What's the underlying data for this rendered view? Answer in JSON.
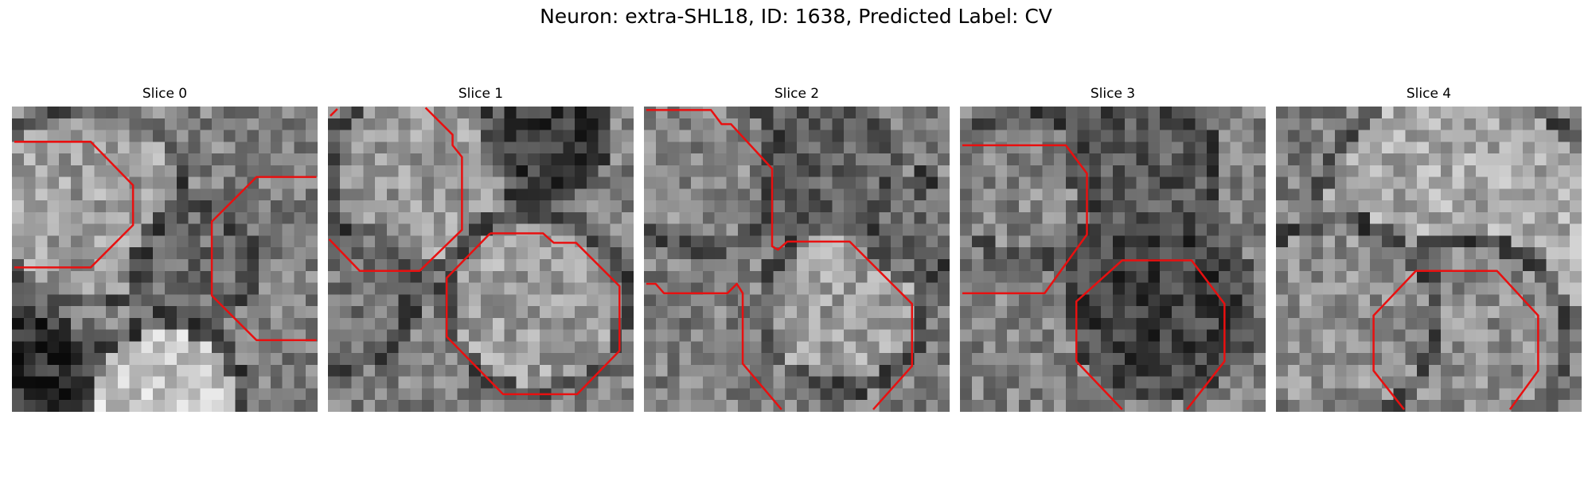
{
  "figure": {
    "title": "Neuron: extra-SHL18, ID: 1638, Predicted Label: CV"
  },
  "colors": {
    "contour": "#e81010"
  },
  "panels": [
    {
      "title": "Slice 0",
      "seed": 11,
      "circles": [
        [
          0.25,
          0.32,
          0.3,
          0.62
        ],
        [
          0.6,
          0.52,
          0.16,
          0.42
        ],
        [
          0.5,
          0.95,
          0.22,
          0.78
        ],
        [
          0.05,
          0.88,
          0.18,
          0.18
        ]
      ],
      "contours": [
        [
          [
            0.2,
            3
          ],
          [
            6.7,
            3
          ],
          [
            10.3,
            6.7
          ],
          [
            10.3,
            10.1
          ],
          [
            6.7,
            13.7
          ],
          [
            0.2,
            13.7
          ]
        ],
        [
          [
            25.9,
            6
          ],
          [
            20.8,
            6
          ],
          [
            17,
            9.8
          ],
          [
            17,
            16.1
          ],
          [
            20.8,
            19.9
          ],
          [
            25.9,
            19.9
          ]
        ]
      ]
    },
    {
      "title": "Slice 1",
      "seed": 23,
      "circles": [
        [
          0.3,
          0.22,
          0.28,
          0.6
        ],
        [
          0.68,
          0.64,
          0.27,
          0.62
        ],
        [
          0.72,
          0.1,
          0.16,
          0.22
        ],
        [
          0.05,
          0.62,
          0.2,
          0.45
        ]
      ],
      "contours": [
        [
          [
            8.3,
            0.1
          ],
          [
            10.6,
            2.4
          ],
          [
            10.6,
            3.3
          ],
          [
            11.4,
            4.3
          ],
          [
            11.4,
            10.5
          ],
          [
            7.8,
            14
          ],
          [
            2.7,
            14
          ],
          [
            0.1,
            11.3
          ]
        ],
        [
          [
            0.2,
            0.8
          ],
          [
            0.8,
            0.2
          ]
        ],
        [
          [
            13.8,
            10.8
          ],
          [
            18.3,
            10.8
          ],
          [
            19.2,
            11.6
          ],
          [
            21.1,
            11.6
          ],
          [
            24.8,
            15.3
          ],
          [
            24.8,
            20.8
          ],
          [
            21.2,
            24.5
          ],
          [
            14.9,
            24.5
          ],
          [
            10.1,
            19.6
          ],
          [
            10.1,
            14.6
          ],
          [
            13.8,
            10.8
          ]
        ]
      ]
    },
    {
      "title": "Slice 2",
      "seed": 37,
      "circles": [
        [
          0.65,
          0.66,
          0.24,
          0.62
        ],
        [
          0.18,
          0.2,
          0.24,
          0.52
        ],
        [
          0.62,
          0.18,
          0.18,
          0.38
        ],
        [
          0.9,
          0.4,
          0.14,
          0.4
        ]
      ],
      "contours": [
        [
          [
            0.2,
            0.3
          ],
          [
            5.7,
            0.3
          ],
          [
            6.6,
            1.5
          ],
          [
            7.4,
            1.5
          ],
          [
            10.9,
            5.3
          ],
          [
            10.9,
            11.9
          ],
          [
            11.4,
            12.2
          ],
          [
            12.2,
            11.5
          ],
          [
            17.5,
            11.5
          ],
          [
            22.8,
            16.8
          ],
          [
            22.8,
            22.1
          ],
          [
            19.5,
            25.8
          ]
        ],
        [
          [
            0.2,
            15.1
          ],
          [
            1,
            15.1
          ],
          [
            1.7,
            15.9
          ],
          [
            7.1,
            15.9
          ],
          [
            7.9,
            15.1
          ],
          [
            8.4,
            15.9
          ],
          [
            8.4,
            21.9
          ],
          [
            11.7,
            25.8
          ]
        ]
      ]
    },
    {
      "title": "Slice 3",
      "seed": 53,
      "circles": [
        [
          0.66,
          0.64,
          0.2,
          0.66
        ],
        [
          0.22,
          0.26,
          0.22,
          0.52
        ],
        [
          0.66,
          0.64,
          0.27,
          0.25
        ],
        [
          0.6,
          0.2,
          0.2,
          0.34
        ]
      ],
      "contours": [
        [
          [
            0.2,
            3.3
          ],
          [
            9,
            3.3
          ],
          [
            10.8,
            5.7
          ],
          [
            10.8,
            10.9
          ],
          [
            7.2,
            15.9
          ],
          [
            0.2,
            15.9
          ]
        ],
        [
          [
            13.8,
            25.8
          ],
          [
            9.9,
            21.7
          ],
          [
            9.9,
            16.6
          ],
          [
            13.8,
            13.1
          ],
          [
            19.7,
            13.1
          ],
          [
            22.5,
            16.8
          ],
          [
            22.5,
            21.7
          ],
          [
            19.3,
            25.8
          ]
        ]
      ]
    },
    {
      "title": "Slice 4",
      "seed": 71,
      "circles": [
        [
          0.6,
          0.4,
          0.45,
          0.66
        ],
        [
          0.62,
          0.76,
          0.3,
          0.55
        ],
        [
          0.2,
          0.7,
          0.3,
          0.56
        ]
      ],
      "contours": [
        [
          [
            10.9,
            25.8
          ],
          [
            8.3,
            22.5
          ],
          [
            8.3,
            17.8
          ],
          [
            11.9,
            14
          ],
          [
            18.8,
            14
          ],
          [
            22.3,
            17.8
          ],
          [
            22.3,
            22.5
          ],
          [
            19.9,
            25.8
          ]
        ]
      ]
    }
  ]
}
